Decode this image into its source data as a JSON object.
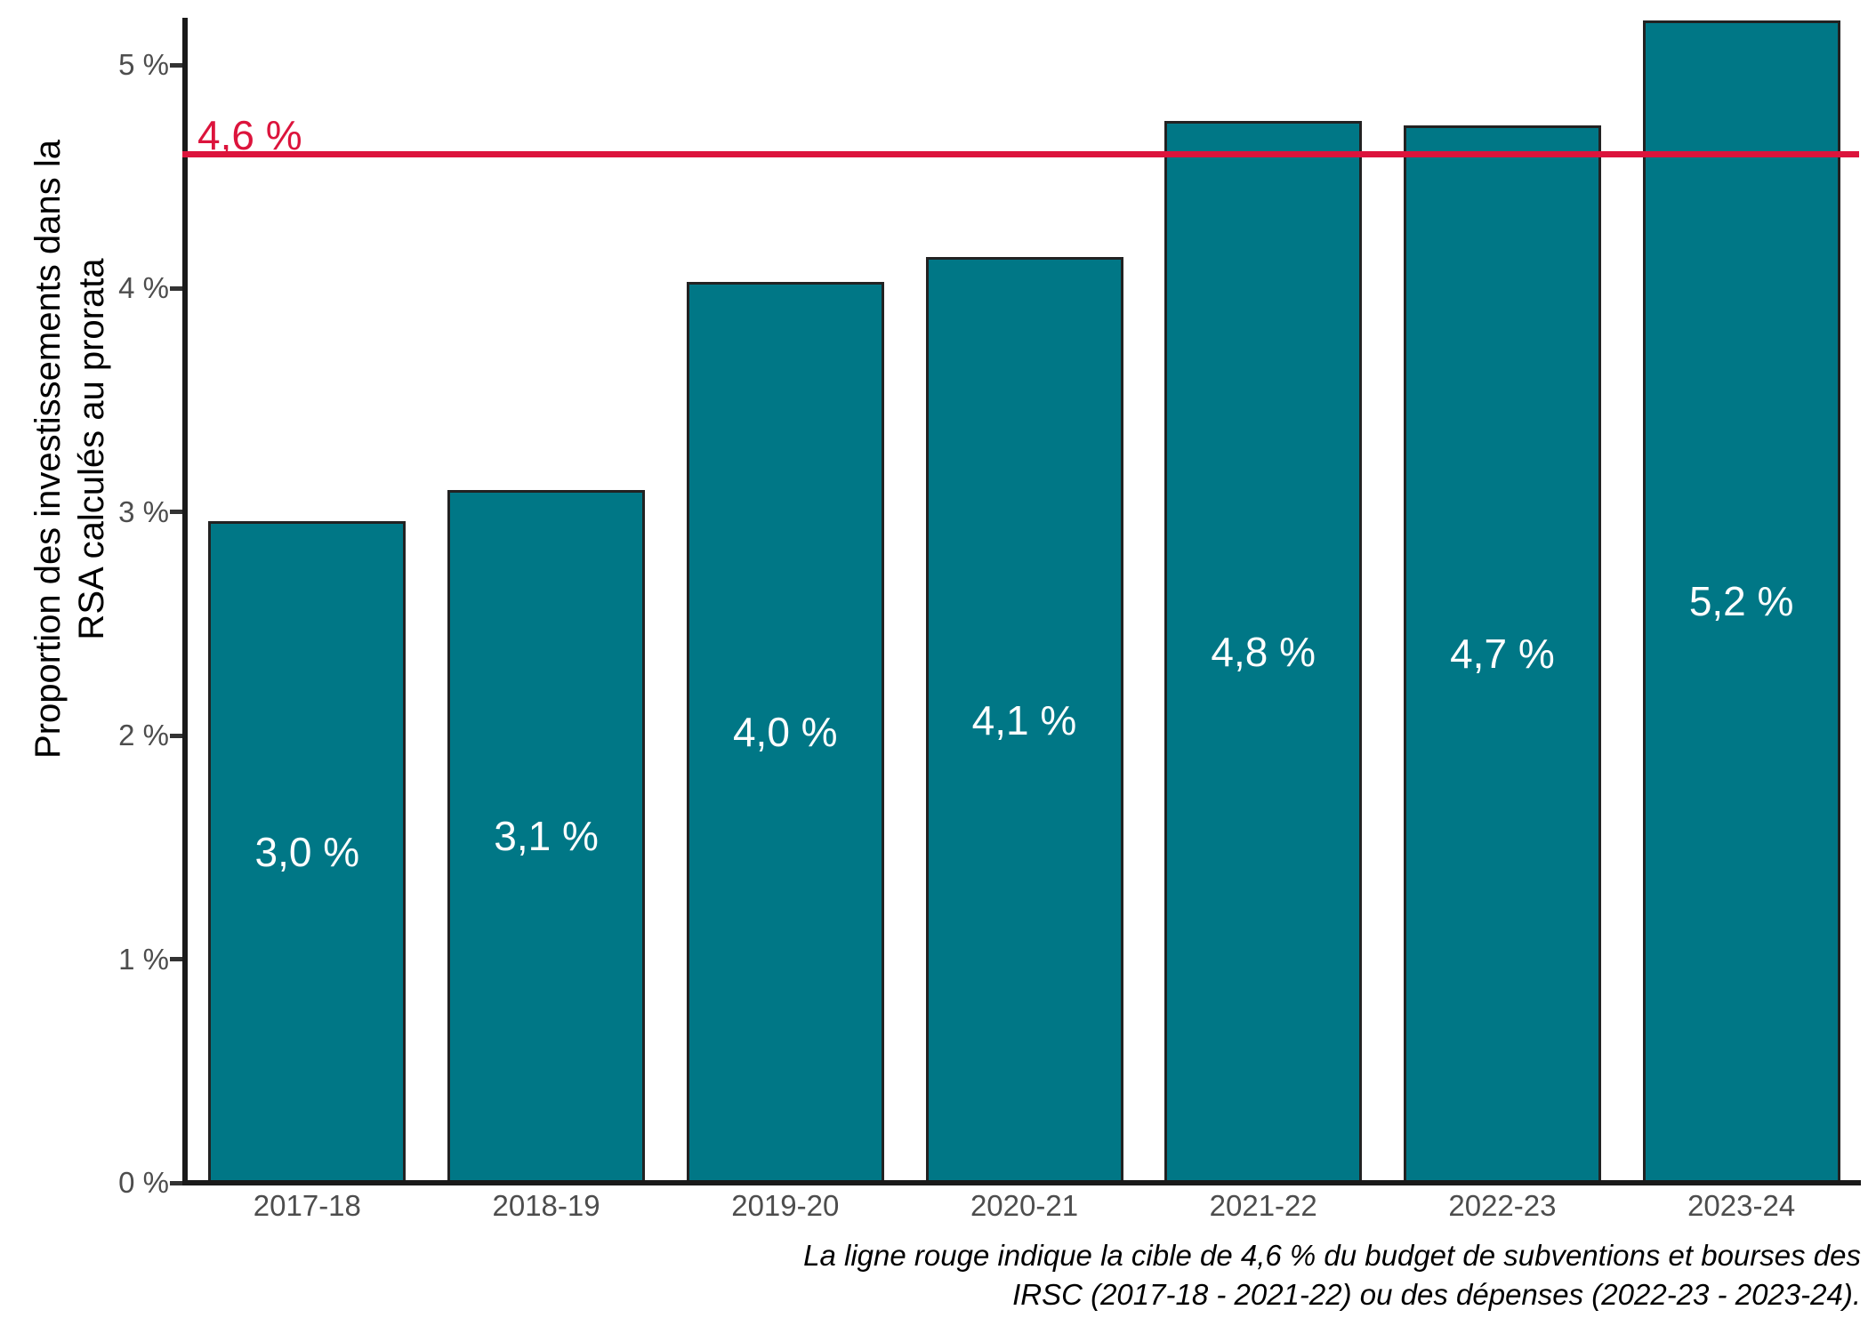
{
  "chart_data": {
    "type": "bar",
    "categories": [
      "2017-18",
      "2018-19",
      "2019-20",
      "2020-21",
      "2021-22",
      "2022-23",
      "2023-24"
    ],
    "values": [
      3.0,
      3.1,
      4.0,
      4.1,
      4.8,
      4.7,
      5.2
    ],
    "bar_labels": [
      "3,0 %",
      "3,1 %",
      "4,0 %",
      "4,1 %",
      "4,8 %",
      "4,7 %",
      "5,2 %"
    ],
    "plot_values": [
      2.96,
      3.1,
      4.03,
      4.14,
      4.75,
      4.73,
      5.2
    ],
    "y_ticks": [
      "0 %",
      "1 %",
      "2 %",
      "3 %",
      "4 %",
      "5 %"
    ],
    "ylim": [
      0,
      5.29
    ],
    "ylabel_line1": "Proportion des investissements dans la",
    "ylabel_line2": "RSA calculés au prorata",
    "xlabel": "",
    "title": "",
    "grid": "off",
    "legend": "none",
    "target_line": {
      "value": 4.6,
      "label": "4,6 %",
      "color": "#dc143c"
    },
    "caption_line1": "La ligne rouge indique la cible de 4,6 % du budget de subventions et bourses des",
    "caption_line2": "IRSC (2017-18 - 2021-22) ou des dépenses (2022-23 - 2023-24).",
    "colors": {
      "bar_fill": "#007786",
      "bar_outline": "#222222",
      "axis": "#1a1a1a",
      "tick_text": "#4d4d4d",
      "bar_label_text": "#ffffff",
      "target": "#dc143c"
    }
  }
}
